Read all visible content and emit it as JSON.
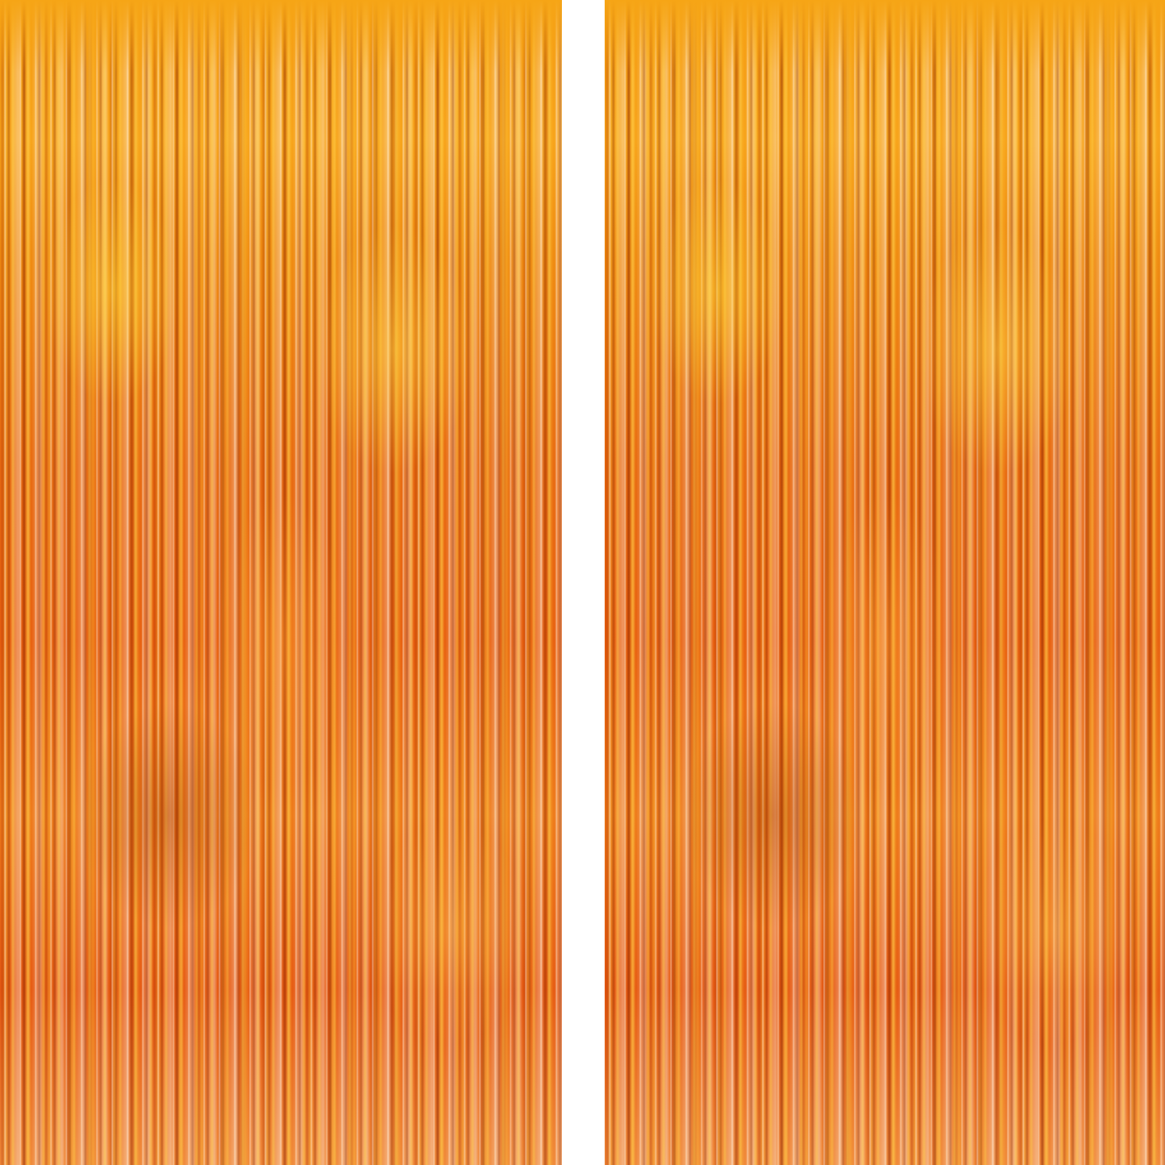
{
  "image": {
    "subject": "orange-foil-fringe-curtain",
    "panel_count": 2,
    "colors": {
      "background": "#ffffff",
      "foil_gold": "#f7a31a",
      "foil_orange": "#e8600f",
      "foil_highlight": "#ffe9c8",
      "foil_shadow": "#8a2a00"
    }
  }
}
